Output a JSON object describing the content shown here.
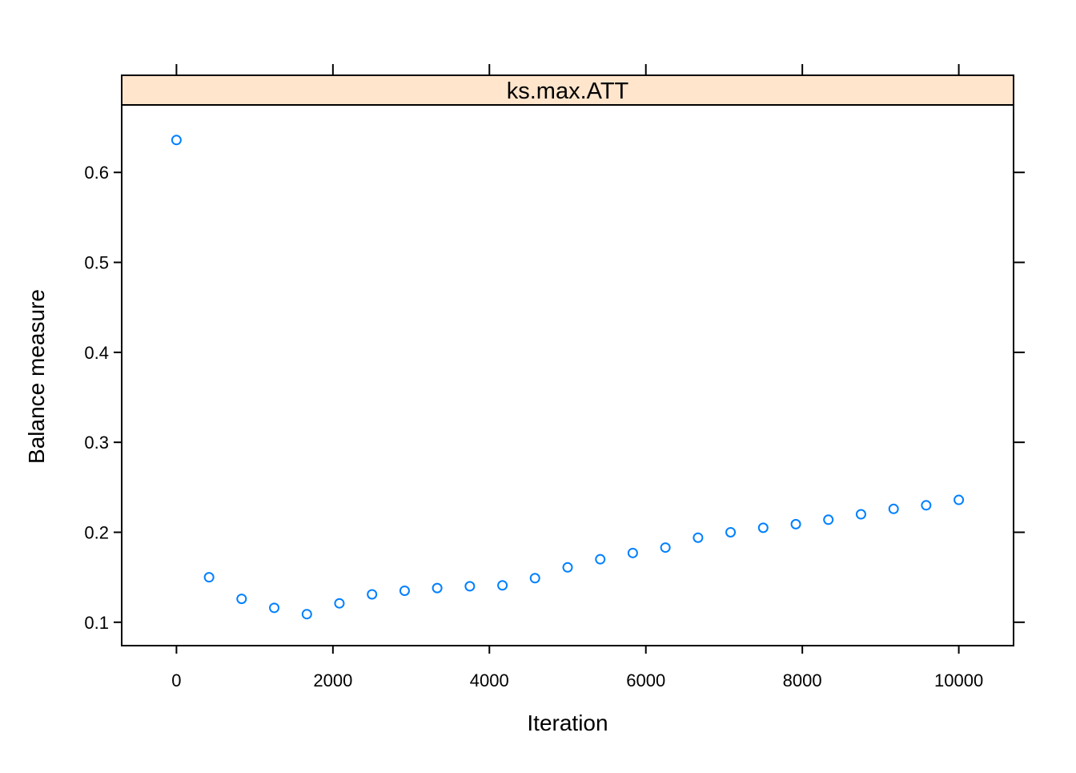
{
  "chart_data": {
    "type": "scatter",
    "panel_title": "ks.max.ATT",
    "xlabel": "Iteration",
    "ylabel": "Balance measure",
    "xlim": [
      -700,
      10700
    ],
    "ylim": [
      0.074,
      0.675
    ],
    "x_ticks": [
      0,
      2000,
      4000,
      6000,
      8000,
      10000
    ],
    "y_ticks": [
      0.1,
      0.2,
      0.3,
      0.4,
      0.5,
      0.6
    ],
    "x_tick_labels": [
      "0",
      "2000",
      "4000",
      "6000",
      "8000",
      "10000"
    ],
    "y_tick_labels": [
      "0.1",
      "0.2",
      "0.3",
      "0.4",
      "0.5",
      "0.6"
    ],
    "grid": false,
    "marker": "open-circle",
    "point_color": "#0080ff",
    "strip_color": "#ffe5cc",
    "series": [
      {
        "x": [
          0,
          417,
          833,
          1250,
          1667,
          2083,
          2500,
          2917,
          3333,
          3750,
          4167,
          4583,
          5000,
          5417,
          5833,
          6250,
          6667,
          7083,
          7500,
          7917,
          8333,
          8750,
          9167,
          9583,
          10000
        ],
        "y": [
          0.636,
          0.15,
          0.126,
          0.116,
          0.109,
          0.121,
          0.131,
          0.135,
          0.138,
          0.14,
          0.141,
          0.149,
          0.161,
          0.17,
          0.177,
          0.183,
          0.194,
          0.2,
          0.205,
          0.209,
          0.214,
          0.22,
          0.226,
          0.23,
          0.236
        ]
      }
    ]
  }
}
